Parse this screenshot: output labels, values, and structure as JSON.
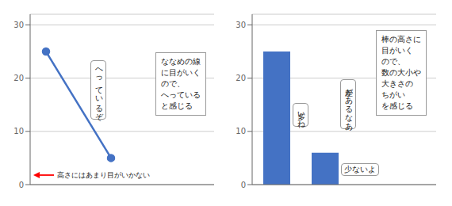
{
  "chart_data": [
    {
      "type": "line",
      "categories": [
        null,
        null
      ],
      "values": [
        25,
        5
      ],
      "color": "#4472c4",
      "ylim": [
        0,
        32
      ],
      "yticks": [
        0,
        10,
        20,
        30
      ],
      "grid": true,
      "tick_labels": "y",
      "marker": "circle",
      "annotations": [
        "へっているぞ",
        "ななめの線\nに目がいく\nので、\nへっている\nと感じる",
        "高さにはあまり目がいかない"
      ]
    },
    {
      "type": "bar",
      "categories": [
        null,
        null
      ],
      "values": [
        25,
        6
      ],
      "color": "#4472c4",
      "ylim": [
        0,
        32
      ],
      "yticks": [
        0,
        10,
        20,
        30
      ],
      "grid": true,
      "tick_labels": "y",
      "annotations": [
        "多いね",
        "差があるなあ",
        "少ないよ",
        "棒の高さに\n目がいく\nので、\n数の大小や\n大きさの\nちがい\nを感じる"
      ]
    }
  ]
}
